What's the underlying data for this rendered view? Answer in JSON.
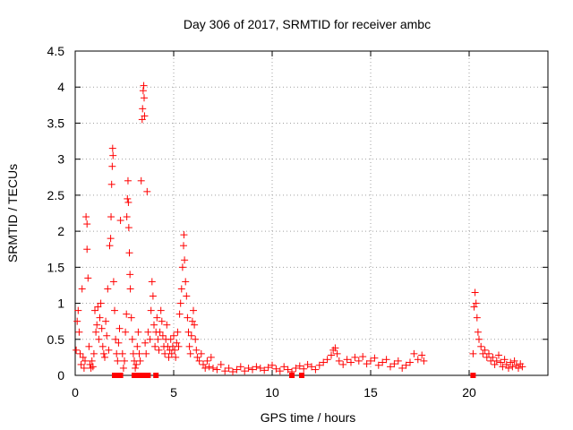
{
  "chart_data": {
    "type": "scatter",
    "title": "Day 306 of 2017, SRMTID for receiver ambc",
    "xlabel": "GPS time / hours",
    "ylabel": "SRMTID / TECUs",
    "xlim": [
      0,
      24
    ],
    "ylim": [
      0,
      4.5
    ],
    "xticks": [
      "0",
      "5",
      "10",
      "15",
      "20"
    ],
    "yticks": [
      "0",
      "0.5",
      "1",
      "1.5",
      "2",
      "2.5",
      "3",
      "3.5",
      "4",
      "4.5"
    ],
    "grid": true,
    "marker_color": "#ff0000",
    "series": [
      {
        "name": "",
        "marker": "plus",
        "points": [
          [
            0.05,
            0.35
          ],
          [
            0.1,
            0.75
          ],
          [
            0.15,
            0.9
          ],
          [
            0.2,
            0.6
          ],
          [
            0.25,
            0.3
          ],
          [
            0.3,
            0.15
          ],
          [
            0.35,
            1.2
          ],
          [
            0.4,
            0.25
          ],
          [
            0.45,
            0.1
          ],
          [
            0.5,
            0.2
          ],
          [
            0.55,
            2.2
          ],
          [
            0.6,
            2.1
          ],
          [
            0.6,
            1.75
          ],
          [
            0.65,
            1.35
          ],
          [
            0.7,
            0.4
          ],
          [
            0.75,
            0.15
          ],
          [
            0.8,
            0.1
          ],
          [
            0.85,
            0.2
          ],
          [
            0.9,
            0.12
          ],
          [
            0.95,
            0.3
          ],
          [
            1.0,
            0.9
          ],
          [
            1.05,
            0.6
          ],
          [
            1.1,
            0.7
          ],
          [
            1.15,
            0.95
          ],
          [
            1.2,
            0.5
          ],
          [
            1.25,
            0.8
          ],
          [
            1.3,
            1.0
          ],
          [
            1.35,
            0.65
          ],
          [
            1.4,
            0.4
          ],
          [
            1.45,
            0.3
          ],
          [
            1.5,
            0.25
          ],
          [
            1.55,
            0.75
          ],
          [
            1.6,
            0.55
          ],
          [
            1.65,
            1.2
          ],
          [
            1.7,
            0.35
          ],
          [
            1.75,
            1.8
          ],
          [
            1.8,
            1.9
          ],
          [
            1.82,
            2.2
          ],
          [
            1.85,
            2.65
          ],
          [
            1.88,
            2.9
          ],
          [
            1.9,
            3.15
          ],
          [
            1.92,
            3.05
          ],
          [
            1.95,
            1.3
          ],
          [
            2.0,
            0.9
          ],
          [
            2.05,
            0.5
          ],
          [
            2.1,
            0.3
          ],
          [
            2.15,
            0.2
          ],
          [
            2.2,
            0.45
          ],
          [
            2.25,
            0.65
          ],
          [
            2.3,
            2.15
          ],
          [
            2.4,
            0.3
          ],
          [
            2.45,
            0.1
          ],
          [
            2.5,
            0.2
          ],
          [
            2.55,
            0.6
          ],
          [
            2.6,
            0.85
          ],
          [
            2.62,
            2.2
          ],
          [
            2.65,
            2.45
          ],
          [
            2.68,
            2.7
          ],
          [
            2.7,
            2.4
          ],
          [
            2.72,
            2.05
          ],
          [
            2.75,
            1.7
          ],
          [
            2.78,
            1.4
          ],
          [
            2.8,
            1.2
          ],
          [
            2.85,
            0.8
          ],
          [
            2.9,
            0.5
          ],
          [
            2.95,
            0.3
          ],
          [
            3.0,
            0.2
          ],
          [
            3.05,
            0.1
          ],
          [
            3.1,
            0.15
          ],
          [
            3.15,
            0.4
          ],
          [
            3.2,
            0.6
          ],
          [
            3.25,
            0.3
          ],
          [
            3.3,
            0.2
          ],
          [
            3.35,
            2.7
          ],
          [
            3.4,
            3.55
          ],
          [
            3.42,
            3.7
          ],
          [
            3.45,
            3.95
          ],
          [
            3.48,
            4.02
          ],
          [
            3.5,
            3.85
          ],
          [
            3.52,
            3.6
          ],
          [
            3.55,
            0.45
          ],
          [
            3.6,
            0.3
          ],
          [
            3.65,
            2.55
          ],
          [
            3.7,
            0.6
          ],
          [
            3.8,
            0.5
          ],
          [
            3.85,
            0.9
          ],
          [
            3.9,
            1.3
          ],
          [
            3.95,
            1.1
          ],
          [
            4.0,
            0.7
          ],
          [
            4.05,
            0.4
          ],
          [
            4.1,
            0.6
          ],
          [
            4.15,
            0.8
          ],
          [
            4.2,
            0.5
          ],
          [
            4.25,
            0.35
          ],
          [
            4.3,
            0.6
          ],
          [
            4.35,
            0.9
          ],
          [
            4.4,
            0.75
          ],
          [
            4.45,
            0.55
          ],
          [
            4.5,
            0.4
          ],
          [
            4.55,
            0.3
          ],
          [
            4.6,
            0.5
          ],
          [
            4.65,
            0.7
          ],
          [
            4.7,
            0.4
          ],
          [
            4.75,
            0.25
          ],
          [
            4.8,
            0.35
          ],
          [
            4.85,
            0.5
          ],
          [
            4.9,
            0.3
          ],
          [
            4.95,
            0.4
          ],
          [
            5.0,
            0.55
          ],
          [
            5.05,
            0.35
          ],
          [
            5.1,
            0.25
          ],
          [
            5.15,
            0.45
          ],
          [
            5.2,
            0.6
          ],
          [
            5.25,
            0.4
          ],
          [
            5.3,
            0.85
          ],
          [
            5.35,
            1.0
          ],
          [
            5.4,
            1.2
          ],
          [
            5.45,
            1.5
          ],
          [
            5.5,
            1.8
          ],
          [
            5.52,
            1.95
          ],
          [
            5.55,
            1.6
          ],
          [
            5.6,
            1.3
          ],
          [
            5.65,
            1.1
          ],
          [
            5.7,
            0.8
          ],
          [
            5.75,
            0.6
          ],
          [
            5.8,
            0.4
          ],
          [
            5.85,
            0.3
          ],
          [
            5.9,
            0.55
          ],
          [
            5.95,
            0.75
          ],
          [
            6.0,
            0.9
          ],
          [
            6.05,
            0.7
          ],
          [
            6.1,
            0.5
          ],
          [
            6.15,
            0.35
          ],
          [
            6.2,
            0.25
          ],
          [
            6.3,
            0.2
          ],
          [
            6.4,
            0.3
          ],
          [
            6.5,
            0.15
          ],
          [
            6.6,
            0.1
          ],
          [
            6.7,
            0.2
          ],
          [
            6.8,
            0.12
          ],
          [
            6.9,
            0.25
          ],
          [
            7.0,
            0.1
          ],
          [
            7.2,
            0.08
          ],
          [
            7.4,
            0.15
          ],
          [
            7.6,
            0.06
          ],
          [
            7.8,
            0.1
          ],
          [
            8.0,
            0.05
          ],
          [
            8.2,
            0.08
          ],
          [
            8.4,
            0.12
          ],
          [
            8.6,
            0.06
          ],
          [
            8.8,
            0.1
          ],
          [
            9.0,
            0.08
          ],
          [
            9.2,
            0.12
          ],
          [
            9.4,
            0.1
          ],
          [
            9.6,
            0.07
          ],
          [
            9.8,
            0.11
          ],
          [
            10.0,
            0.14
          ],
          [
            10.2,
            0.09
          ],
          [
            10.4,
            0.06
          ],
          [
            10.6,
            0.12
          ],
          [
            10.8,
            0.08
          ],
          [
            11.0,
            0.05
          ],
          [
            11.2,
            0.1
          ],
          [
            11.4,
            0.13
          ],
          [
            11.6,
            0.09
          ],
          [
            11.8,
            0.15
          ],
          [
            12.0,
            0.12
          ],
          [
            12.2,
            0.08
          ],
          [
            12.4,
            0.14
          ],
          [
            12.6,
            0.18
          ],
          [
            12.8,
            0.22
          ],
          [
            13.0,
            0.28
          ],
          [
            13.1,
            0.35
          ],
          [
            13.2,
            0.38
          ],
          [
            13.3,
            0.3
          ],
          [
            13.4,
            0.2
          ],
          [
            13.6,
            0.15
          ],
          [
            13.8,
            0.22
          ],
          [
            14.0,
            0.18
          ],
          [
            14.2,
            0.25
          ],
          [
            14.4,
            0.2
          ],
          [
            14.6,
            0.26
          ],
          [
            14.8,
            0.16
          ],
          [
            15.0,
            0.2
          ],
          [
            15.2,
            0.24
          ],
          [
            15.4,
            0.14
          ],
          [
            15.6,
            0.18
          ],
          [
            15.8,
            0.22
          ],
          [
            16.0,
            0.12
          ],
          [
            16.2,
            0.16
          ],
          [
            16.4,
            0.2
          ],
          [
            16.6,
            0.1
          ],
          [
            16.8,
            0.14
          ],
          [
            17.0,
            0.18
          ],
          [
            17.2,
            0.3
          ],
          [
            17.4,
            0.22
          ],
          [
            17.6,
            0.28
          ],
          [
            17.7,
            0.2
          ],
          [
            20.2,
            0.3
          ],
          [
            20.25,
            0.95
          ],
          [
            20.3,
            1.15
          ],
          [
            20.35,
            1.0
          ],
          [
            20.4,
            0.8
          ],
          [
            20.45,
            0.6
          ],
          [
            20.5,
            0.5
          ],
          [
            20.6,
            0.4
          ],
          [
            20.7,
            0.3
          ],
          [
            20.8,
            0.35
          ],
          [
            20.9,
            0.25
          ],
          [
            21.0,
            0.3
          ],
          [
            21.1,
            0.2
          ],
          [
            21.2,
            0.25
          ],
          [
            21.3,
            0.15
          ],
          [
            21.4,
            0.2
          ],
          [
            21.5,
            0.28
          ],
          [
            21.6,
            0.18
          ],
          [
            21.7,
            0.12
          ],
          [
            21.8,
            0.22
          ],
          [
            21.9,
            0.15
          ],
          [
            22.0,
            0.1
          ],
          [
            22.1,
            0.18
          ],
          [
            22.2,
            0.12
          ],
          [
            22.3,
            0.2
          ],
          [
            22.4,
            0.14
          ],
          [
            22.5,
            0.1
          ],
          [
            22.6,
            0.16
          ],
          [
            22.7,
            0.12
          ]
        ]
      },
      {
        "name": "",
        "marker": "square",
        "points": [
          [
            2.0,
            0
          ],
          [
            2.1,
            0
          ],
          [
            2.2,
            0
          ],
          [
            2.3,
            0
          ],
          [
            3.0,
            0
          ],
          [
            3.1,
            0
          ],
          [
            3.3,
            0
          ],
          [
            3.5,
            0
          ],
          [
            3.7,
            0
          ],
          [
            4.1,
            0
          ],
          [
            11.0,
            0
          ],
          [
            11.5,
            0
          ],
          [
            20.2,
            0
          ]
        ]
      }
    ]
  }
}
